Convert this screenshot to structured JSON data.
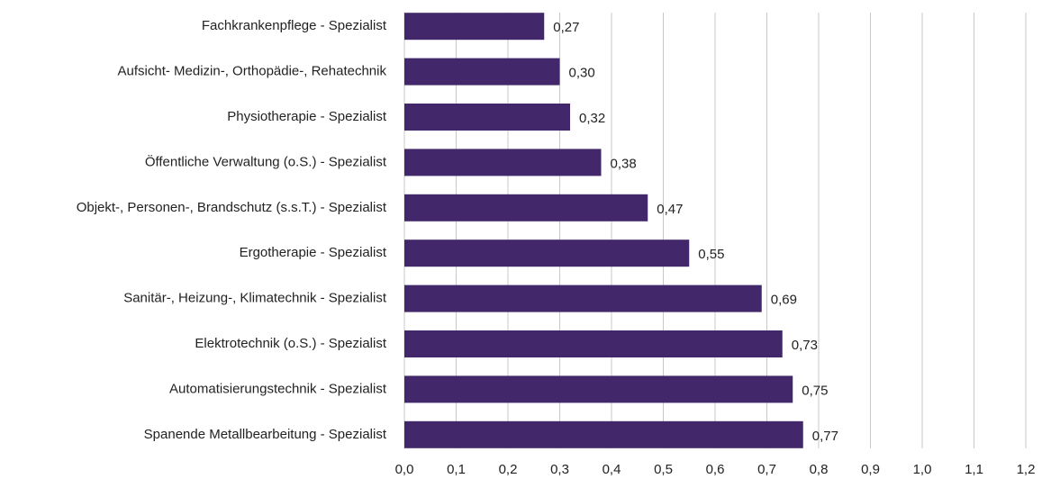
{
  "chart_data": {
    "type": "bar",
    "orientation": "horizontal",
    "categories": [
      "Fachkrankenpflege - Spezialist",
      "Aufsicht- Medizin-, Orthopädie-, Rehatechnik",
      "Physiotherapie - Spezialist",
      "Öffentliche Verwaltung (o.S.) - Spezialist",
      "Objekt-, Personen-, Brandschutz (s.s.T.) - Spezialist",
      "Ergotherapie - Spezialist",
      "Sanitär-, Heizung-, Klimatechnik - Spezialist",
      "Elektrotechnik (o.S.) - Spezialist",
      "Automatisierungstechnik - Spezialist",
      "Spanende Metallbearbeitung - Spezialist"
    ],
    "values": [
      0.27,
      0.3,
      0.32,
      0.38,
      0.47,
      0.55,
      0.69,
      0.73,
      0.75,
      0.77
    ],
    "value_labels": [
      "0,27",
      "0,30",
      "0,32",
      "0,38",
      "0,47",
      "0,55",
      "0,69",
      "0,73",
      "0,75",
      "0,77"
    ],
    "color": "#42286b",
    "xlim": [
      0,
      1.2
    ],
    "xticks": [
      {
        "value": 0,
        "label": "0,0"
      },
      {
        "value": 0.1,
        "label": "0,1"
      },
      {
        "value": 0.2,
        "label": "0,2"
      },
      {
        "value": 0.3,
        "label": "0,3"
      },
      {
        "value": 0.4,
        "label": "0,4"
      },
      {
        "value": 0.5,
        "label": "0,5"
      },
      {
        "value": 0.6,
        "label": "0,6"
      },
      {
        "value": 0.7,
        "label": "0,7"
      },
      {
        "value": 0.8,
        "label": "0,8"
      },
      {
        "value": 0.9,
        "label": "0,9"
      },
      {
        "value": 1.0,
        "label": "1,0"
      },
      {
        "value": 1.1,
        "label": "1,1"
      },
      {
        "value": 1.2,
        "label": "1,2"
      }
    ],
    "grid": true
  }
}
